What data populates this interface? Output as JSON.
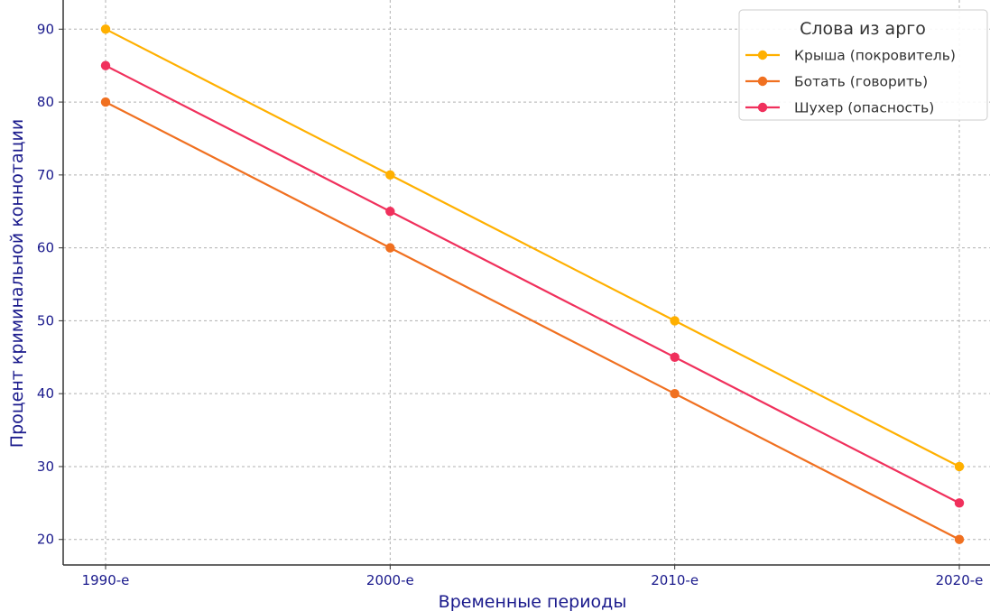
{
  "chart_data": {
    "type": "line",
    "title": "",
    "xlabel": "Временные периоды",
    "ylabel": "Процент криминальной коннотации",
    "categories": [
      "1990-е",
      "2000-е",
      "2010-е",
      "2020-е"
    ],
    "ylim": [
      16.5,
      94
    ],
    "yticks": [
      20,
      30,
      40,
      50,
      60,
      70,
      80,
      90
    ],
    "grid": true,
    "legend": {
      "title": "Слова из арго",
      "placement": "top-right"
    },
    "series": [
      {
        "name": "Крыша (покровитель)",
        "color": "#ffb000",
        "values": [
          90,
          70,
          50,
          30
        ]
      },
      {
        "name": "Ботать (говорить)",
        "color": "#f07020",
        "values": [
          80,
          60,
          40,
          20
        ]
      },
      {
        "name": "Шухер (опасность)",
        "color": "#f0305c",
        "values": [
          85,
          65,
          45,
          25
        ]
      }
    ]
  }
}
